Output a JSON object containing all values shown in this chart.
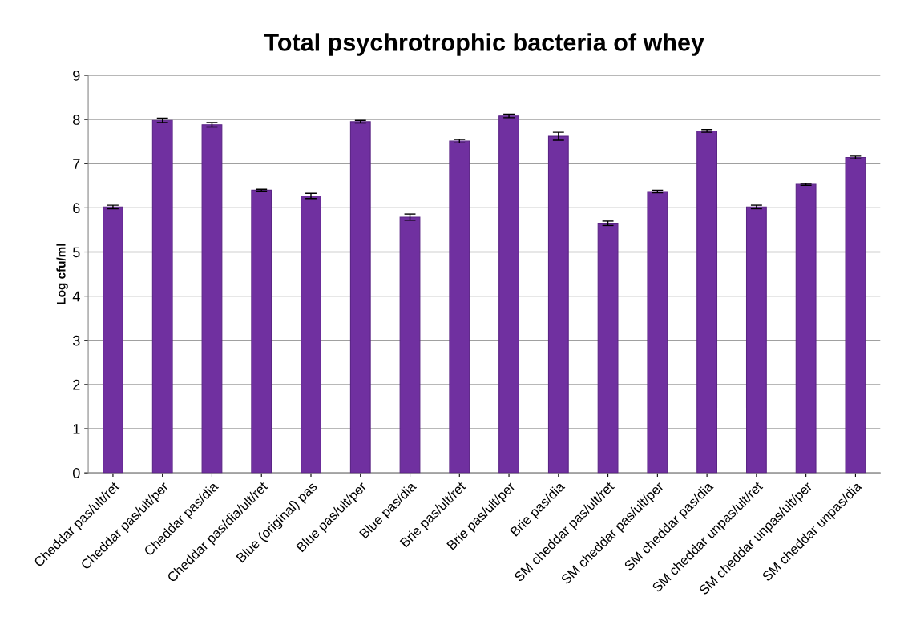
{
  "chart_data": {
    "type": "bar",
    "title": "Total psychrotrophic bacteria of whey",
    "ylabel": "Log cfu/ml",
    "categories": [
      "Cheddar pas/ult/ret",
      "Cheddar pas/ult/per",
      "Cheddar pas/dia",
      "Cheddar pas/dia/ult/ret",
      "Blue (original) pas",
      "Blue pas/ult/per",
      "Blue pas/dia",
      "Brie pas/ult/ret",
      "Brie pas/ult/per",
      "Brie pas/dia",
      "SM cheddar pas/ult/ret",
      "SM cheddar pas/ult/per",
      "SM cheddar pas/dia",
      "SM cheddar unpas/ult/ret",
      "SM cheddar unpas/ult/per",
      "SM cheddar unpas/dia"
    ],
    "values": [
      6.02,
      7.98,
      7.88,
      6.4,
      6.27,
      7.95,
      5.79,
      7.51,
      8.08,
      7.62,
      5.65,
      6.37,
      7.74,
      6.02,
      6.53,
      7.14
    ],
    "errors": [
      0.04,
      0.05,
      0.05,
      0.02,
      0.06,
      0.03,
      0.07,
      0.04,
      0.04,
      0.09,
      0.05,
      0.03,
      0.03,
      0.04,
      0.02,
      0.03
    ],
    "color": "#7030a0",
    "ylim": [
      0,
      9
    ],
    "yticks": [
      0,
      1,
      2,
      3,
      4,
      5,
      6,
      7,
      8,
      9
    ],
    "grid": "y",
    "legend": false
  }
}
